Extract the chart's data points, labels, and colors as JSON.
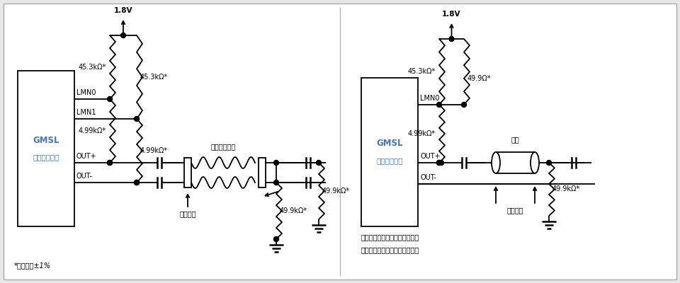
{
  "bg_color": "#e8e8e8",
  "panel_bg": "#ffffff",
  "line_color": "#000000",
  "line_width": 1.3,
  "font_size_main": 8.5,
  "font_size_small": 7.5,
  "font_size_note": 7.0,
  "gmsl_label_1": "GMSL",
  "gmsl_label_2": "シリアライザ",
  "gmsl_color": "#4477bb",
  "vcc_label": "1.8V",
  "lmn0": "LMN0",
  "lmn1": "LMN1",
  "outp": "OUT+",
  "outm": "OUT-",
  "r_453k": "45.3kΩ*",
  "r_499k": "4.99kΩ*",
  "r_499": "49.9Ω*",
  "r_499k_term": "49.9kΩ*",
  "cable_stp": "ツイストペア",
  "cable_coax": "同軸",
  "connector": "コネクタ",
  "note_left": "*許容誤差±1%",
  "note_right_1": "未使用のラインフォルト入力は",
  "note_right_2": "未接続のままにしてください。"
}
